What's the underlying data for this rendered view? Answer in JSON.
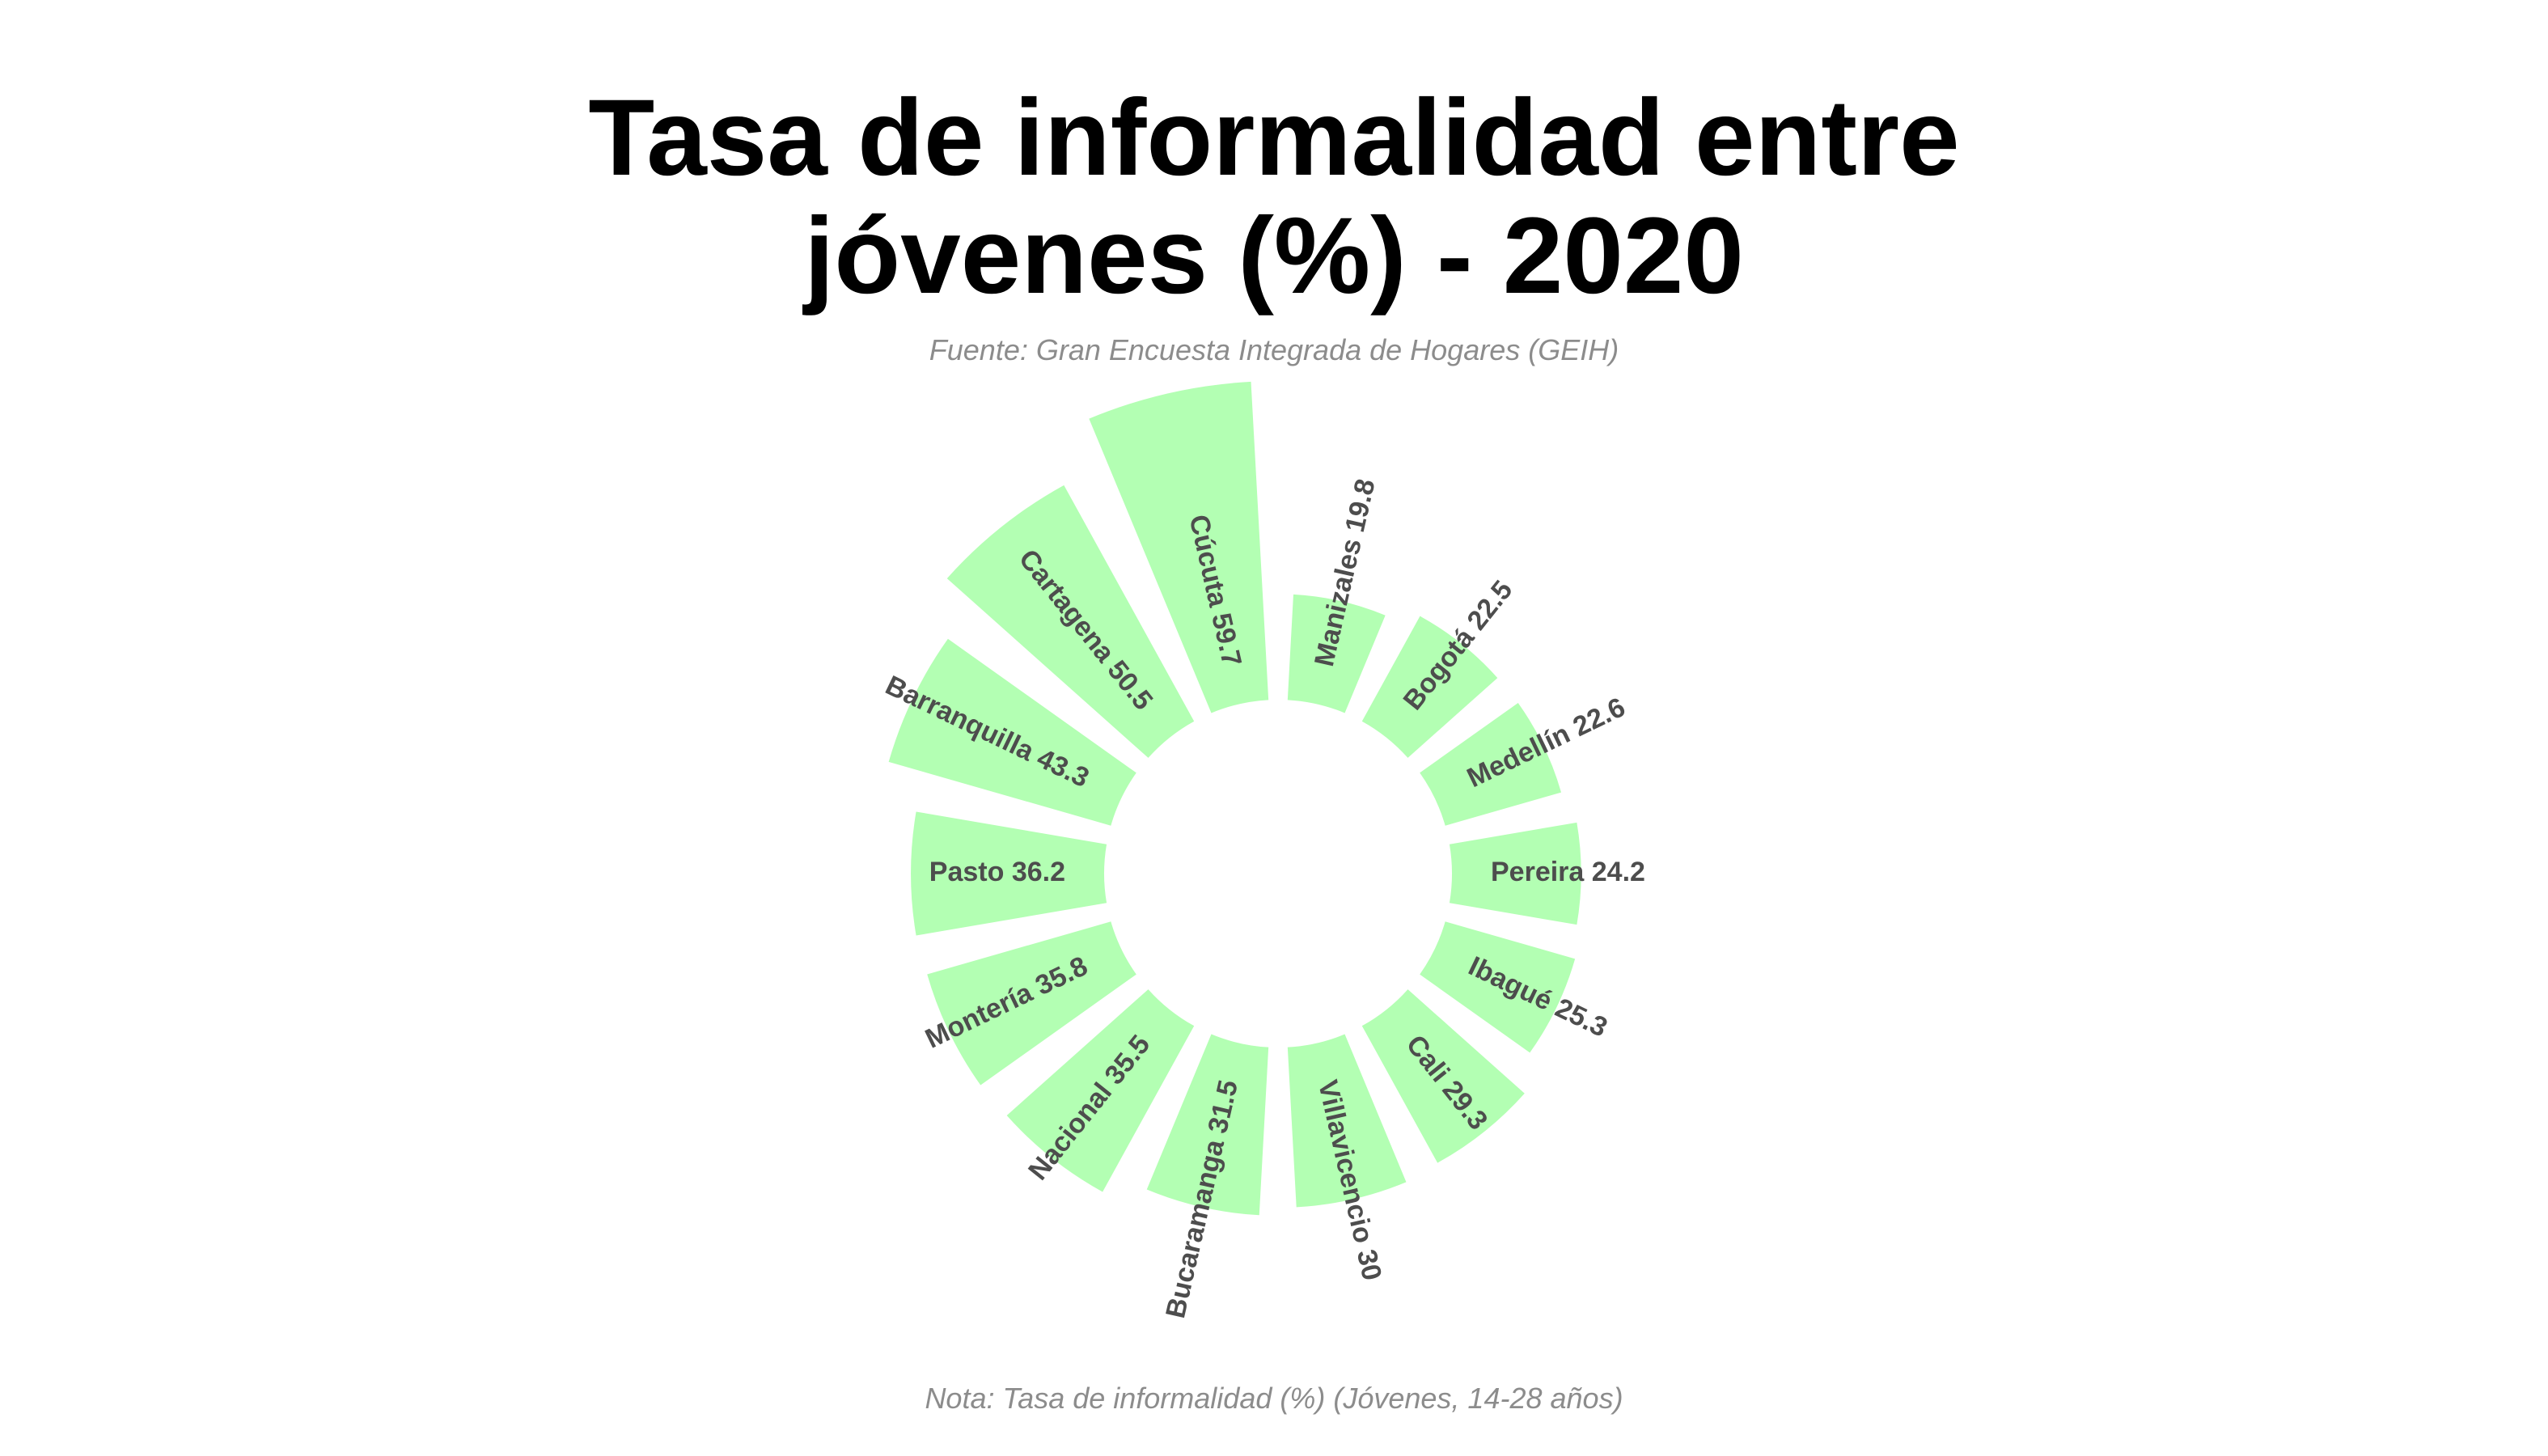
{
  "title_lines": [
    "Tasa de informalidad entre",
    "jóvenes (%) - 2020"
  ],
  "subtitle": "Fuente: Gran Encuesta Integrada de Hogares (GEIH)",
  "caption": "Nota: Tasa de informalidad (%) (Jóvenes, 14-28 años)",
  "colors": {
    "bar": "#b3ffb3",
    "label": "#4d4d4d",
    "title": "#000000",
    "muted": "#8c8c8c"
  },
  "chart_data": {
    "type": "bar",
    "coord": "polar",
    "title": "Tasa de informalidad entre jóvenes (%) - 2020",
    "subtitle": "Fuente: Gran Encuesta Integrada de Hogares (GEIH)",
    "caption": "Nota: Tasa de informalidad (%) (Jóvenes, 14-28 años)",
    "categories": [
      "Manizales",
      "Bogotá",
      "Medellín",
      "Pereira",
      "Ibagué",
      "Cali",
      "Villavicencio",
      "Bucaramanga",
      "Nacional",
      "Montería",
      "Pasto",
      "Barranquilla",
      "Cartagena",
      "Cúcuta"
    ],
    "values": [
      19.8,
      22.5,
      22.6,
      24.2,
      25.3,
      29.3,
      30,
      31.5,
      35.5,
      35.8,
      36.2,
      43.3,
      50.5,
      59.7
    ],
    "labels": [
      "Manizales 19.8",
      "Bogotá 22.5",
      "Medellín 22.6",
      "Pereira 24.2",
      "Ibagué 25.3",
      "Cali 29.3",
      "Villavicencio 30",
      "Bucaramanga 31.5",
      "Nacional 35.5",
      "Montería 35.8",
      "Pasto 36.2",
      "Barranquilla 43.3",
      "Cartagena 50.5",
      "Cúcuta 59.7"
    ],
    "legend": "none",
    "grid": false,
    "axes": false
  }
}
